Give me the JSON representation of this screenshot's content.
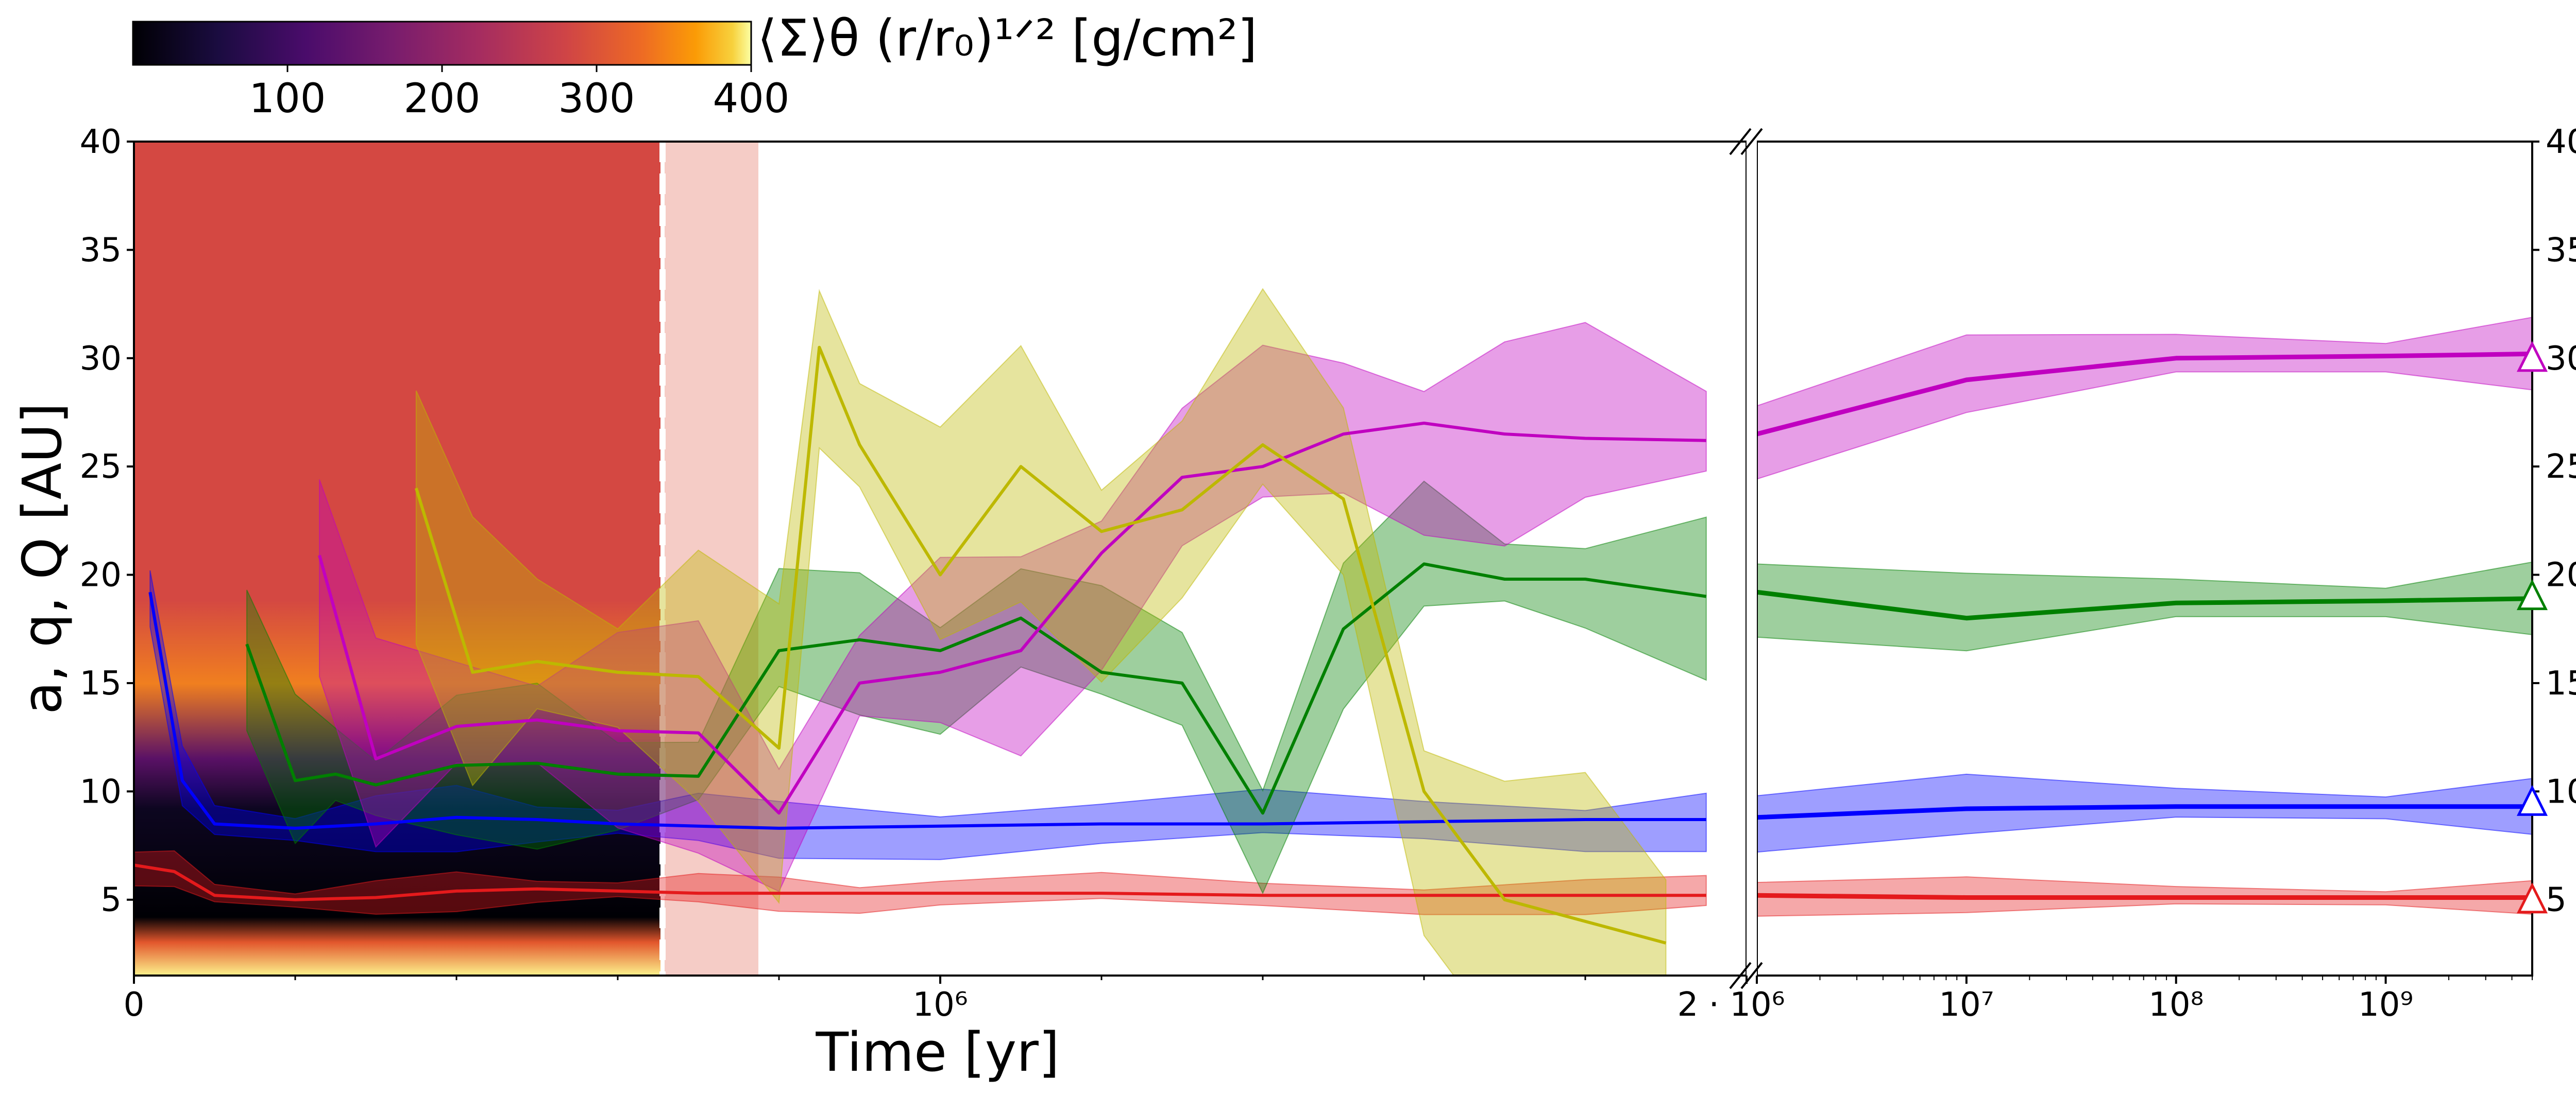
{
  "chart_data": {
    "type": "line",
    "xlabel": "Time [yr]",
    "ylabel": "a, q, Q [AU]",
    "ylim": [
      1.5,
      40
    ],
    "y_ticks": [
      5,
      10,
      15,
      20,
      25,
      30,
      35,
      40
    ],
    "x_linear_ticks": [
      "0",
      "10⁶",
      "2 · 10⁶"
    ],
    "x_log_ticks": [
      "10⁶",
      "10⁷",
      "10⁸",
      "10⁹"
    ],
    "colorbar": {
      "label": "⟨Σ⟩θ (r/r₀)¹ᐟ² [g/cm²]",
      "ticks": [
        "100",
        "200",
        "300",
        "400"
      ],
      "range": [
        0,
        400
      ],
      "colormap": "inferno"
    },
    "markers": {
      "shape": "triangle",
      "values": [
        5,
        9.5,
        19,
        30
      ]
    },
    "series": [
      {
        "color": "#e41a1c",
        "segment1_x": [
          0,
          50000,
          100000,
          200000,
          300000,
          400000,
          500000,
          600000,
          700000,
          800000,
          900000,
          1000000,
          1200000,
          1400000,
          1600000,
          1800000,
          1950000
        ],
        "segment1_y": [
          6.6,
          6.3,
          5.2,
          5.0,
          5.1,
          5.4,
          5.5,
          5.4,
          5.3,
          5.3,
          5.3,
          5.3,
          5.3,
          5.2,
          5.2,
          5.2,
          5.2
        ],
        "segment2_x": [
          1000000,
          10000000.0,
          100000000.0,
          1000000000.0,
          5000000000.0
        ],
        "segment2_y": [
          5.2,
          5.1,
          5.1,
          5.1,
          5.1
        ]
      },
      {
        "color": "#0000ff",
        "segment1_x": [
          20000,
          60000,
          100000,
          200000,
          300000,
          400000,
          500000,
          600000,
          700000,
          800000,
          1000000,
          1200000,
          1400000,
          1600000,
          1800000,
          1950000
        ],
        "segment1_y": [
          19.2,
          10.5,
          8.5,
          8.3,
          8.5,
          8.8,
          8.7,
          8.5,
          8.4,
          8.3,
          8.4,
          8.5,
          8.5,
          8.6,
          8.7,
          8.7
        ],
        "segment2_x": [
          1000000,
          10000000.0,
          100000000.0,
          1000000000.0,
          5000000000.0
        ],
        "segment2_y": [
          8.8,
          9.2,
          9.3,
          9.3,
          9.3
        ]
      },
      {
        "color": "#008000",
        "segment1_x": [
          140000,
          200000,
          250000,
          300000,
          400000,
          500000,
          600000,
          700000,
          800000,
          900000,
          1000000,
          1100000,
          1200000,
          1300000,
          1400000,
          1500000,
          1600000,
          1700000,
          1800000,
          1950000
        ],
        "segment1_y": [
          16.8,
          10.5,
          10.8,
          10.3,
          11.2,
          11.3,
          10.8,
          10.7,
          16.5,
          17.0,
          16.5,
          18.0,
          15.5,
          15.0,
          9.0,
          17.5,
          20.5,
          19.8,
          19.8,
          19.0
        ],
        "segment2_x": [
          1000000,
          10000000.0,
          100000000.0,
          1000000000.0,
          5000000000.0
        ],
        "segment2_y": [
          19.2,
          18.0,
          18.7,
          18.8,
          18.9
        ]
      },
      {
        "color": "#c000c0",
        "segment1_x": [
          230000,
          300000,
          400000,
          500000,
          600000,
          700000,
          800000,
          900000,
          1000000,
          1100000,
          1200000,
          1300000,
          1400000,
          1500000,
          1600000,
          1700000,
          1800000,
          1950000
        ],
        "segment1_y": [
          20.9,
          11.5,
          13.0,
          13.3,
          12.8,
          12.7,
          9.0,
          15.0,
          15.5,
          16.5,
          21.0,
          24.5,
          25.0,
          26.5,
          27.0,
          26.5,
          26.3,
          26.2
        ],
        "segment2_x": [
          1000000,
          10000000.0,
          100000000.0,
          1000000000.0,
          5000000000.0
        ],
        "segment2_y": [
          26.5,
          29.0,
          30.0,
          30.1,
          30.2
        ]
      },
      {
        "color": "#bdb800",
        "segment1_x": [
          350000,
          420000,
          500000,
          600000,
          700000,
          800000,
          850000,
          900000,
          1000000,
          1100000,
          1200000,
          1300000,
          1400000,
          1500000,
          1600000,
          1700000,
          1800000,
          1900000
        ],
        "segment1_y": [
          24.0,
          15.5,
          16.0,
          15.5,
          15.3,
          12.0,
          30.5,
          26.0,
          20.0,
          25.0,
          22.0,
          23.0,
          26.0,
          23.5,
          10.0,
          5.0,
          4.0,
          3.0
        ],
        "segment2_x": [],
        "segment2_y": []
      }
    ]
  }
}
